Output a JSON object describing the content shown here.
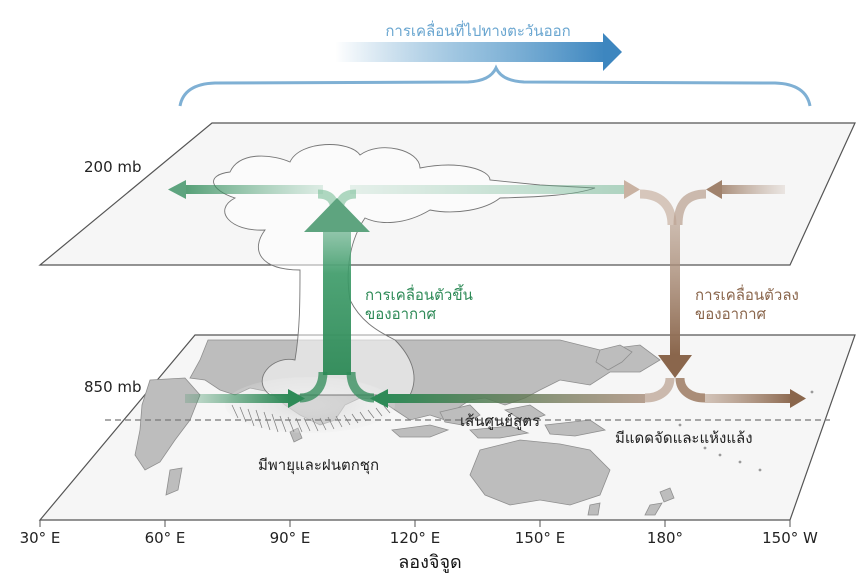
{
  "header": {
    "movement_label": "การเคลื่อนที่ไปทางตะวันออก"
  },
  "levels": {
    "upper": "200 mb",
    "lower": "850 mb"
  },
  "labels": {
    "rising_air_line1": "การเคลื่อนตัวขึ้น",
    "rising_air_line2": "ของอากาศ",
    "sinking_air_line1": "การเคลื่อนตัวลง",
    "sinking_air_line2": "ของอากาศ",
    "equator": "เส้นศูนย์สูตร",
    "storm_region": "มีพายุและฝนตกชุก",
    "dry_region": "มีแดดจัดและแห้งแล้ง"
  },
  "axis": {
    "ticks": [
      "30° E",
      "60° E",
      "90° E",
      "120° E",
      "150° E",
      "180°",
      "150° W"
    ],
    "title": "ลองจิจูด"
  },
  "colors": {
    "rising": "#2e8a57",
    "sinking": "#8a664c",
    "eastward_arrow": "#4a90c2",
    "brace": "#7fb0d4",
    "label_blue": "#6aa6d0",
    "land": "#bdbdbd",
    "plane_stroke": "#555555"
  }
}
